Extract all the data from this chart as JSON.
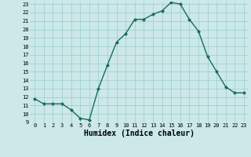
{
  "x": [
    0,
    1,
    2,
    3,
    4,
    5,
    6,
    7,
    8,
    9,
    10,
    11,
    12,
    13,
    14,
    15,
    16,
    17,
    18,
    19,
    20,
    21,
    22,
    23
  ],
  "y": [
    11.8,
    11.2,
    11.2,
    11.2,
    10.5,
    9.5,
    9.3,
    13.0,
    15.8,
    18.5,
    19.5,
    21.2,
    21.2,
    21.8,
    22.2,
    23.2,
    23.0,
    21.2,
    19.8,
    16.8,
    15.0,
    13.2,
    12.5,
    12.5
  ],
  "xlabel": "Humidex (Indice chaleur)",
  "ylim": [
    9,
    23
  ],
  "xlim": [
    -0.5,
    23.5
  ],
  "yticks": [
    9,
    10,
    11,
    12,
    13,
    14,
    15,
    16,
    17,
    18,
    19,
    20,
    21,
    22,
    23
  ],
  "xticks": [
    0,
    1,
    2,
    3,
    4,
    5,
    6,
    7,
    8,
    9,
    10,
    11,
    12,
    13,
    14,
    15,
    16,
    17,
    18,
    19,
    20,
    21,
    22,
    23
  ],
  "line_color": "#1a6b5a",
  "marker_color": "#1a6b5a",
  "bg_color": "#cce8e8",
  "grid_color": "#99cccc",
  "xlabel_fontsize": 7,
  "tick_fontsize": 5
}
